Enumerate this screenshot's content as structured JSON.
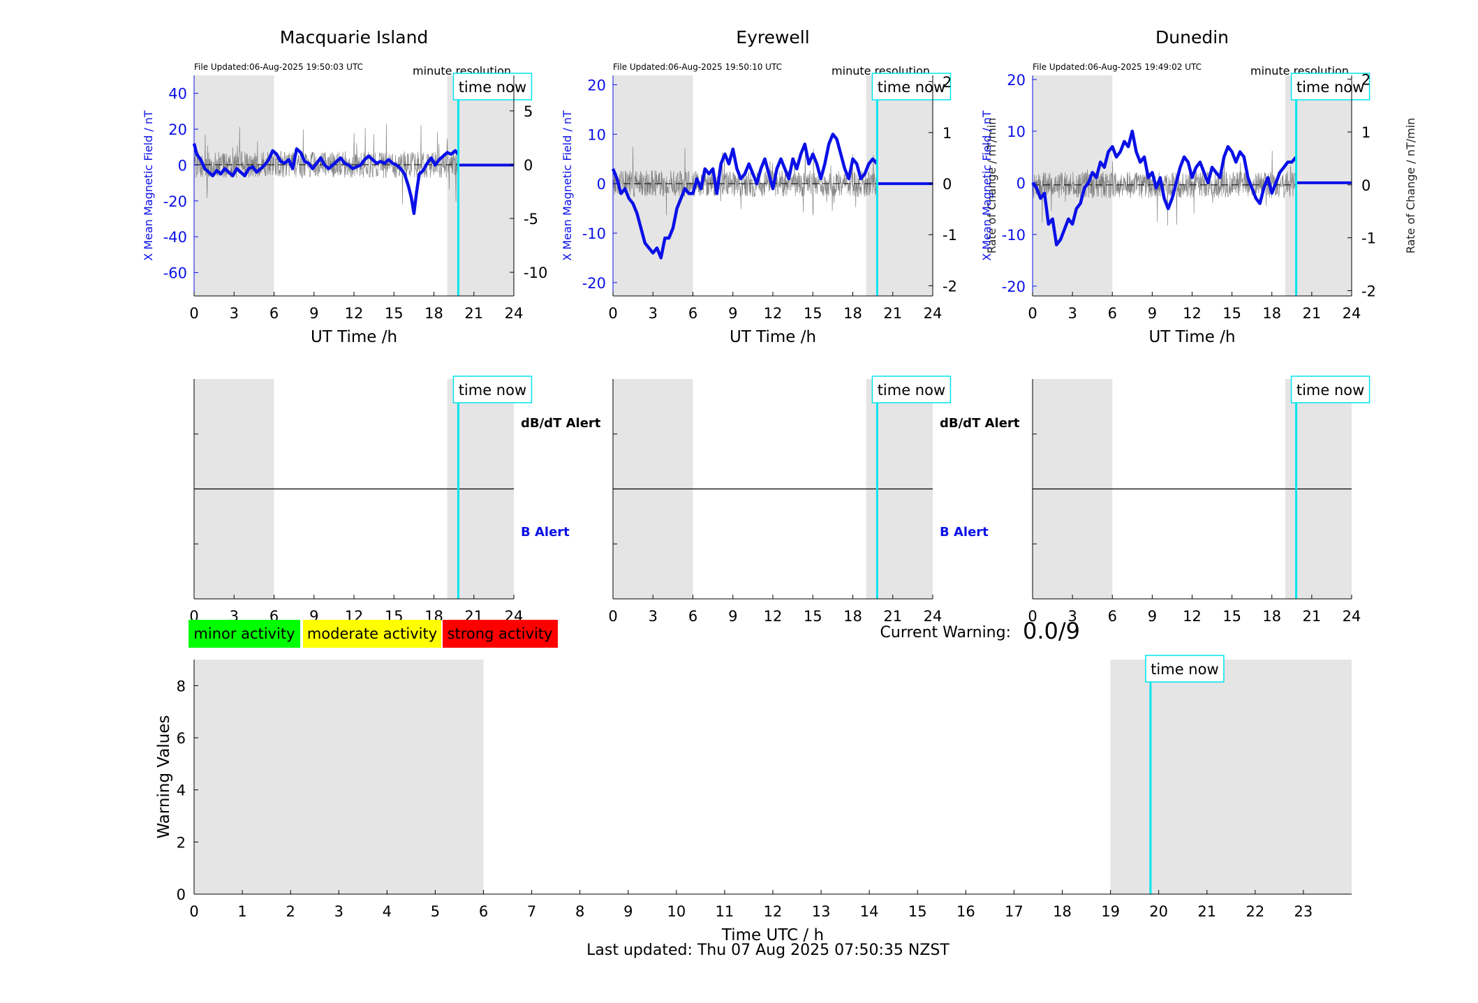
{
  "colors": {
    "x_field": "#0a10e6",
    "rate": "#555555",
    "now_line": "#00e5ee",
    "shade": "#e5e5e5",
    "minor": "#00ff00",
    "moderate": "#ffff00",
    "strong": "#ff0000"
  },
  "footer": {
    "last_updated": "Last updated: Thu 07 Aug 2025 07:50:35 NZST"
  },
  "warning": {
    "label": "Current Warning:",
    "value": "0.0/9"
  },
  "legend": {
    "minor": "minor activity",
    "moderate": "moderate activity",
    "strong": "strong activity"
  },
  "chart_data": [
    {
      "type": "line",
      "title": "Macquarie Island",
      "file_updated": "File Updated:06-Aug-2025 19:50:03 UTC",
      "resolution_label": "minute resolution",
      "now_label": "time now",
      "now_hour": 19.83,
      "xlabel": "UT Time /h",
      "xlim": [
        0,
        24
      ],
      "xticks": [
        0,
        3,
        6,
        9,
        12,
        15,
        18,
        21,
        24
      ],
      "ylabel_left": "X Mean Magnetic Field / nT",
      "ylim_left": [
        -73,
        50
      ],
      "yticks_left": [
        -60,
        -40,
        -20,
        0,
        20,
        40
      ],
      "ylabel_right": "",
      "ylim_right": [
        -12.2,
        8.3
      ],
      "yticks_right": [
        -10,
        -5,
        0,
        5
      ],
      "shaded": [
        [
          0,
          6
        ],
        [
          19,
          24
        ]
      ],
      "series": [
        {
          "name": "x_mean",
          "x": [
            0,
            0.2,
            0.5,
            0.8,
            1.1,
            1.4,
            1.7,
            2,
            2.3,
            2.6,
            2.9,
            3.2,
            3.5,
            3.8,
            4.1,
            4.4,
            4.7,
            5,
            5.3,
            5.6,
            5.9,
            6.2,
            6.5,
            6.8,
            7.1,
            7.4,
            7.7,
            8,
            8.3,
            8.6,
            8.9,
            9.2,
            9.5,
            9.8,
            10.1,
            10.4,
            10.7,
            11,
            11.3,
            11.6,
            11.9,
            12.2,
            12.5,
            12.8,
            13.1,
            13.4,
            13.7,
            14,
            14.3,
            14.6,
            14.9,
            15.2,
            15.5,
            15.8,
            16.1,
            16.3,
            16.5,
            16.7,
            16.9,
            17.2,
            17.5,
            17.8,
            18.1,
            18.4,
            18.7,
            19,
            19.3,
            19.6,
            19.83
          ],
          "y": [
            12,
            6,
            3,
            -2,
            -4,
            -6,
            -3,
            -5,
            -2,
            -4,
            -6,
            -2,
            -4,
            -6,
            -2,
            -1,
            -4,
            -2,
            0,
            3,
            8,
            6,
            2,
            1,
            3,
            -2,
            9,
            7,
            2,
            1,
            -2,
            1,
            4,
            0,
            -2,
            0,
            2,
            4,
            1,
            0,
            -2,
            -1,
            0,
            3,
            5,
            3,
            1,
            2,
            1,
            3,
            1,
            0,
            -2,
            -5,
            -12,
            -18,
            -27,
            -15,
            -5,
            -3,
            1,
            4,
            0,
            3,
            5,
            7,
            6,
            8,
            6
          ]
        },
        {
          "name": "rate",
          "x": [],
          "y": []
        }
      ]
    },
    {
      "type": "line",
      "title": "Eyrewell",
      "file_updated": "File Updated:06-Aug-2025 19:50:10 UTC",
      "resolution_label": "minute resolution",
      "now_label": "time now",
      "now_hour": 19.83,
      "xlabel": "UT Time /h",
      "xlim": [
        0,
        24
      ],
      "xticks": [
        0,
        3,
        6,
        9,
        12,
        15,
        18,
        21,
        24
      ],
      "ylabel_left": "X Mean Magnetic Field / nT",
      "ylim_left": [
        -22.7,
        21.9
      ],
      "yticks_left": [
        -20,
        -10,
        0,
        10,
        20
      ],
      "ylabel_right": "Rate of Change / nT/min",
      "ylim_right": [
        -2.2,
        2.12
      ],
      "yticks_right": [
        -2,
        -1,
        0,
        1,
        2
      ],
      "shaded": [
        [
          0,
          6
        ],
        [
          19,
          24
        ]
      ],
      "series": [
        {
          "name": "x_mean",
          "x": [
            0,
            0.3,
            0.6,
            0.9,
            1.2,
            1.5,
            1.8,
            2.1,
            2.4,
            2.7,
            3,
            3.3,
            3.6,
            3.9,
            4.2,
            4.5,
            4.8,
            5.1,
            5.4,
            5.7,
            6,
            6.3,
            6.6,
            6.9,
            7.2,
            7.5,
            7.8,
            8.1,
            8.4,
            8.7,
            9,
            9.3,
            9.6,
            9.9,
            10.2,
            10.5,
            10.8,
            11.1,
            11.4,
            11.7,
            12,
            12.3,
            12.6,
            12.9,
            13.2,
            13.5,
            13.8,
            14.1,
            14.4,
            14.7,
            15,
            15.3,
            15.6,
            15.9,
            16.2,
            16.5,
            16.8,
            17.1,
            17.4,
            17.7,
            18,
            18.3,
            18.6,
            18.9,
            19.2,
            19.5,
            19.83
          ],
          "y": [
            3,
            1,
            -2,
            -1,
            -3,
            -4,
            -6,
            -9,
            -12,
            -13,
            -14,
            -13,
            -15,
            -11,
            -11,
            -9,
            -5,
            -3,
            -1,
            -2,
            -2,
            1,
            -1,
            3,
            2,
            3,
            -2,
            4,
            6,
            4,
            7,
            3,
            1,
            2,
            4,
            2,
            0,
            3,
            5,
            2,
            -1,
            3,
            5,
            3,
            1,
            5,
            3,
            6,
            8,
            4,
            6,
            4,
            1,
            4,
            8,
            10,
            9,
            6,
            3,
            1,
            5,
            4,
            1,
            2,
            4,
            5,
            4
          ]
        },
        {
          "name": "rate",
          "x": [],
          "y": []
        }
      ]
    },
    {
      "type": "line",
      "title": "Dunedin",
      "file_updated": "File Updated:06-Aug-2025 19:49:02 UTC",
      "resolution_label": "minute resolution",
      "now_label": "time now",
      "now_hour": 19.83,
      "xlabel": "UT Time /h",
      "xlim": [
        0,
        24
      ],
      "xticks": [
        0,
        3,
        6,
        9,
        12,
        15,
        18,
        21,
        24
      ],
      "ylabel_left": "X Mean Magnetic Field / nT",
      "ylim_left": [
        -21.9,
        20.8
      ],
      "yticks_left": [
        -20,
        -10,
        0,
        10,
        20
      ],
      "ylabel_right": "Rate of Change / nT/min",
      "ylim_right": [
        -2.1,
        2.07
      ],
      "yticks_right": [
        -2,
        -1,
        0,
        1,
        2
      ],
      "shaded": [
        [
          0,
          6
        ],
        [
          19,
          24
        ]
      ],
      "series": [
        {
          "name": "x_mean",
          "x": [
            0,
            0.3,
            0.6,
            0.9,
            1.2,
            1.5,
            1.8,
            2.1,
            2.4,
            2.7,
            3,
            3.3,
            3.6,
            3.9,
            4.2,
            4.5,
            4.8,
            5.1,
            5.4,
            5.7,
            6,
            6.3,
            6.6,
            6.9,
            7.2,
            7.5,
            7.8,
            8.1,
            8.4,
            8.7,
            9,
            9.3,
            9.6,
            9.9,
            10.2,
            10.5,
            10.8,
            11.1,
            11.4,
            11.7,
            12,
            12.3,
            12.6,
            12.9,
            13.2,
            13.5,
            13.8,
            14.1,
            14.4,
            14.7,
            15,
            15.3,
            15.6,
            15.9,
            16.2,
            16.5,
            16.8,
            17.1,
            17.4,
            17.7,
            18,
            18.3,
            18.6,
            18.9,
            19.2,
            19.5,
            19.83
          ],
          "y": [
            0,
            -1,
            -3,
            -2,
            -8,
            -7,
            -12,
            -11,
            -9,
            -7,
            -8,
            -5,
            -4,
            -1,
            0,
            2,
            1,
            4,
            3,
            6,
            7,
            5,
            6,
            8,
            7,
            10,
            6,
            4,
            5,
            1,
            2,
            -1,
            1,
            -3,
            -5,
            -3,
            0,
            3,
            5,
            4,
            1,
            3,
            4,
            2,
            0,
            3,
            2,
            1,
            5,
            7,
            6,
            4,
            6,
            5,
            1,
            -1,
            -3,
            -4,
            -1,
            1,
            -2,
            0,
            2,
            3,
            4,
            4,
            5
          ]
        },
        {
          "name": "rate",
          "x": [],
          "y": []
        }
      ]
    },
    {
      "type": "line",
      "title": "",
      "panel": "alert",
      "now_label": "time now",
      "now_hour": 19.83,
      "xlim": [
        0,
        24
      ],
      "xticks": [
        0,
        3,
        6,
        9,
        12,
        15,
        18,
        21,
        24
      ],
      "shaded": [
        [
          0,
          6
        ],
        [
          19,
          24
        ]
      ],
      "labels": {
        "top": "dB/dT Alert",
        "bottom": "B Alert"
      }
    },
    {
      "type": "line",
      "title": "",
      "panel": "alert",
      "now_label": "time now",
      "now_hour": 19.83,
      "xlim": [
        0,
        24
      ],
      "xticks": [
        0,
        3,
        6,
        9,
        12,
        15,
        18,
        21,
        24
      ],
      "shaded": [
        [
          0,
          6
        ],
        [
          19,
          24
        ]
      ],
      "labels": {
        "top": "dB/dT Alert",
        "bottom": "B Alert"
      }
    },
    {
      "type": "line",
      "title": "",
      "panel": "alert",
      "now_label": "time now",
      "now_hour": 19.83,
      "xlim": [
        0,
        24
      ],
      "xticks": [
        0,
        3,
        6,
        9,
        12,
        15,
        18,
        21,
        24
      ],
      "shaded": [
        [
          0,
          6
        ],
        [
          19,
          24
        ]
      ],
      "labels": {
        "top": "",
        "bottom": ""
      }
    },
    {
      "type": "line",
      "title": "",
      "panel": "warning",
      "now_label": "time now",
      "now_hour": 19.83,
      "xlabel": "Time UTC / h",
      "ylabel": "Warning Values",
      "xlim": [
        0,
        24
      ],
      "ylim": [
        0,
        9
      ],
      "xticks": [
        0,
        1,
        2,
        3,
        4,
        5,
        6,
        7,
        8,
        9,
        10,
        11,
        12,
        13,
        14,
        15,
        16,
        17,
        18,
        19,
        20,
        21,
        22,
        23
      ],
      "yticks": [
        0,
        2,
        4,
        6,
        8
      ],
      "shaded": [
        [
          0,
          6
        ],
        [
          19,
          24
        ]
      ],
      "series": []
    }
  ]
}
